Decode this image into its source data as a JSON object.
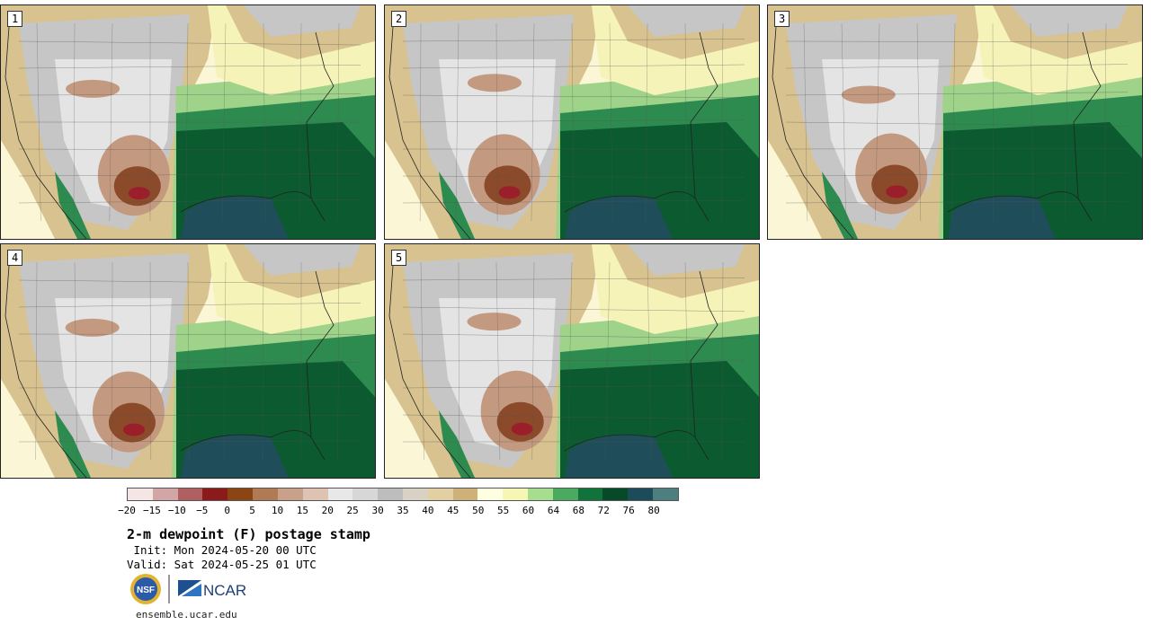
{
  "title": "2-m dewpoint (F) postage stamp",
  "init": " Init: Mon 2024-05-20 00 UTC",
  "valid": "Valid: Sat 2024-05-25 01 UTC",
  "footer": "ensemble.ucar.edu",
  "logos": {
    "nsf": "NSF",
    "ncar": "NCAR"
  },
  "members": [
    "1",
    "2",
    "3",
    "4",
    "5"
  ],
  "colorbar": {
    "colors": [
      "#f5e6e6",
      "#d4a5a5",
      "#b06060",
      "#8b1a1a",
      "#8b4513",
      "#b07a55",
      "#c9a089",
      "#dfc3b2",
      "#e8e8e8",
      "#d7d7d7",
      "#bdbdbd",
      "#d8d2c4",
      "#e2cfa2",
      "#cdb178",
      "#fefee0",
      "#f7f7b5",
      "#a6de8f",
      "#4aaa5e",
      "#11733c",
      "#064a2a",
      "#1c4b5a",
      "#4d7f80"
    ],
    "tick_labels": [
      "-20",
      "-15",
      "-10",
      "-5",
      "0",
      "5",
      "10",
      "15",
      "20",
      "25",
      "30",
      "35",
      "40",
      "45",
      "50",
      "55",
      "60",
      "64",
      "68",
      "72",
      "76",
      "80"
    ]
  },
  "map_colors": {
    "water": "#fbf7d6",
    "gulf": "#1f4e5a",
    "dark_green": "#0b5a30",
    "mid_green": "#2e8b4f",
    "light_green": "#9fd38a",
    "pale_yellow": "#f5f3b8",
    "tan": "#d8c28f",
    "gray": "#c6c6c6",
    "light_gray": "#e4e4e4",
    "brown": "#c39a80",
    "dark_brown": "#8b4a2a",
    "red": "#9b1f2a"
  }
}
